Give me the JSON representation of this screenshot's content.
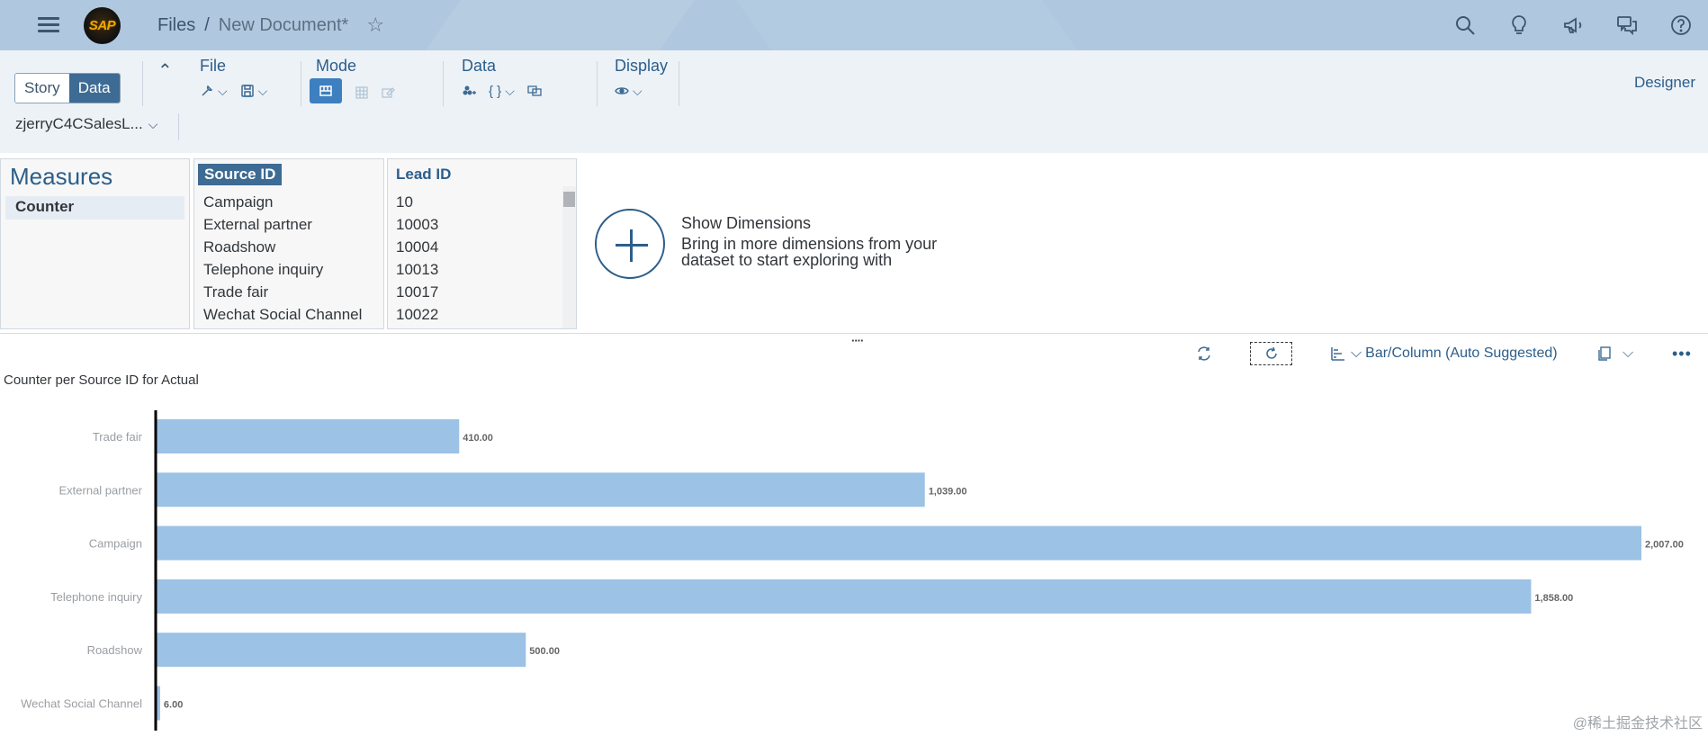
{
  "shell": {
    "logo_text": "SAP",
    "breadcrumb_files": "Files",
    "breadcrumb_sep": "/",
    "breadcrumb_doc": "New Document*",
    "icons": [
      "search-icon",
      "lightbulb-icon",
      "megaphone-icon",
      "feedback-icon",
      "help-icon"
    ]
  },
  "toolbar": {
    "story_label": "Story",
    "data_label": "Data",
    "file_label": "File",
    "mode_label": "Mode",
    "data_group_label": "Data",
    "display_label": "Display",
    "designer_label": "Designer",
    "model_name": "zjerryC4CSalesL..."
  },
  "panels": {
    "measures_title": "Measures",
    "measure_item": "Counter",
    "source_id_header": "Source ID",
    "source_ids": [
      "Campaign",
      "External partner",
      "Roadshow",
      "Telephone inquiry",
      "Trade fair",
      "Wechat Social Channel"
    ],
    "lead_id_header": "Lead ID",
    "lead_ids": [
      "10",
      "10003",
      "10004",
      "10013",
      "10017",
      "10022"
    ]
  },
  "show_dimensions": {
    "title": "Show Dimensions",
    "line1": "Bring in more dimensions from your",
    "line2": "dataset to start exploring with"
  },
  "chart_toolbar": {
    "chart_type_label": "Bar/Column (Auto Suggested)"
  },
  "chart_title": "Counter per Source ID for Actual",
  "chart_data": {
    "type": "bar",
    "orientation": "horizontal",
    "title": "Counter per Source ID for Actual",
    "categories": [
      "Trade fair",
      "External partner",
      "Campaign",
      "Telephone inquiry",
      "Roadshow",
      "Wechat Social Channel"
    ],
    "values": [
      410,
      1039,
      2007,
      1858,
      500,
      6
    ],
    "value_labels": [
      "410.00",
      "1,039.00",
      "2,007.00",
      "1,858.00",
      "500.00",
      "6.00"
    ],
    "color": "#9cc2e5",
    "xlim": [
      0,
      2007
    ]
  },
  "watermark": "@稀土掘金技术社区"
}
